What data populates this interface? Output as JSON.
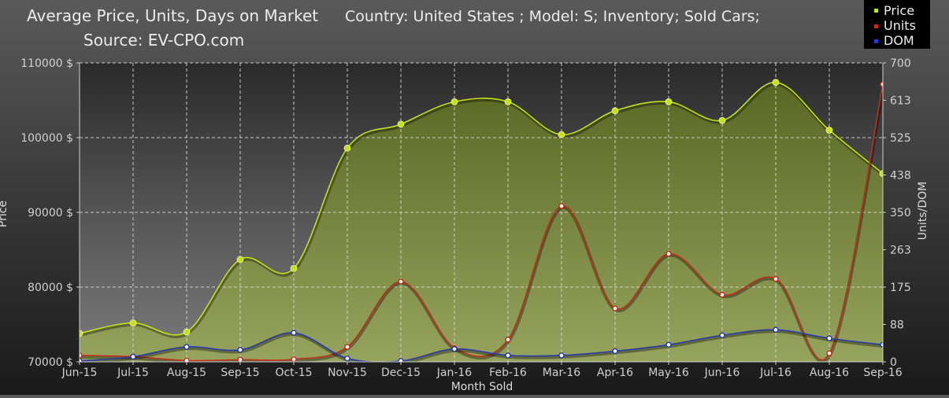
{
  "header": {
    "title_line1": "Average Price, Units, Days on Market",
    "title_line2": "Source: EV-CPO.com",
    "filters": "Country: United States ; Model: S; Inventory;  Sold Cars;"
  },
  "colors": {
    "price": "#c6e01c",
    "units": "#c0301a",
    "dom": "#2a3aa8",
    "area_fill": "#8a9a3a",
    "grid": "#d8d8d8"
  },
  "chart_data": {
    "type": "line",
    "categories": [
      "Jun-15",
      "Jul-15",
      "Aug-15",
      "Sep-15",
      "Oct-15",
      "Nov-15",
      "Dec-15",
      "Jan-16",
      "Feb-16",
      "Mar-16",
      "Apr-16",
      "May-16",
      "Jun-16",
      "Jul-16",
      "Aug-16",
      "Sep-16"
    ],
    "xlabel": "Month Sold",
    "ylabel_left": "Price",
    "ylabel_right": "Units/DOM",
    "ylim_left": [
      70000,
      110000
    ],
    "ylim_right": [
      0,
      700
    ],
    "left_ticks": [
      "70000 $",
      "80000 $",
      "90000 $",
      "100000 $",
      "110000 $"
    ],
    "right_ticks": [
      "0",
      "88",
      "175",
      "263",
      "350",
      "438",
      "525",
      "613",
      "700"
    ],
    "series": [
      {
        "name": "Price",
        "axis": "left",
        "color": "#c6e01c",
        "area": true,
        "values": [
          73800,
          75200,
          74000,
          83700,
          82500,
          98600,
          101800,
          104800,
          104800,
          100400,
          103600,
          104800,
          102300,
          107400,
          101000,
          95200
        ]
      },
      {
        "name": "Units",
        "axis": "right",
        "color": "#c0301a",
        "values": [
          15,
          12,
          3,
          5,
          6,
          35,
          188,
          32,
          52,
          365,
          125,
          253,
          157,
          194,
          20,
          650
        ]
      },
      {
        "name": "DOM",
        "axis": "right",
        "color": "#2a3aa8",
        "values": [
          2,
          12,
          35,
          28,
          68,
          8,
          2,
          30,
          15,
          15,
          25,
          40,
          62,
          75,
          55,
          40
        ]
      }
    ],
    "legend": [
      "Price",
      "Units",
      "DOM"
    ],
    "legend_position": "top-right",
    "grid": true
  }
}
